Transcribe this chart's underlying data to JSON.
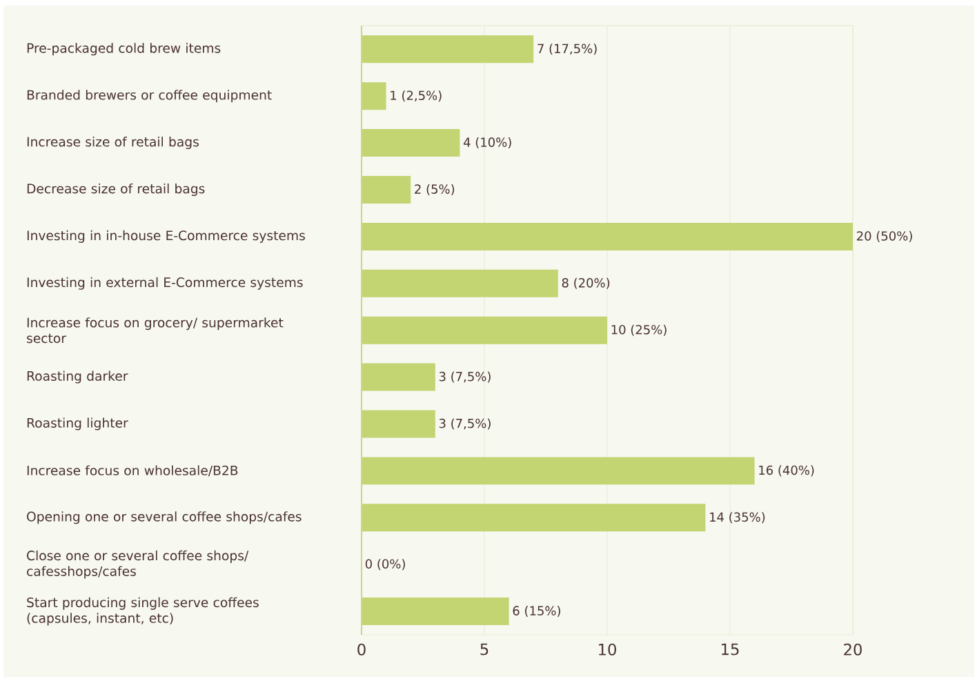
{
  "chart_data": {
    "type": "bar",
    "orientation": "horizontal",
    "categories": [
      "Pre-packaged cold brew items",
      "Branded brewers or coffee equipment",
      "Increase size of retail bags",
      "Decrease size of retail bags",
      "Investing in in-house E-Commerce systems",
      "Investing in external E-Commerce systems",
      "Increase focus on grocery/ supermarket sector",
      "Roasting darker",
      "Roasting lighter",
      "Increase focus on wholesale/B2B",
      "Opening one or several coffee shops/cafes",
      "Close one or several coffee shops/ cafesshops/cafes",
      "Start producing single serve coffees (capsules, instant, etc)"
    ],
    "values": [
      7,
      1,
      4,
      2,
      20,
      8,
      10,
      3,
      3,
      16,
      14,
      0,
      6
    ],
    "value_labels": [
      "7 (17,5%)",
      "1 (2,5%)",
      "4 (10%)",
      "2 (5%)",
      "20 (50%)",
      "8 (20%)",
      "10 (25%)",
      "3 (7,5%)",
      "3 (7,5%)",
      "16 (40%)",
      "14 (35%)",
      "0 (0%)",
      "6 (15%)"
    ],
    "color": "#c2d572",
    "xlim": [
      0,
      20
    ],
    "xticks": [
      0,
      5,
      10,
      15,
      20
    ],
    "grid": "x"
  }
}
